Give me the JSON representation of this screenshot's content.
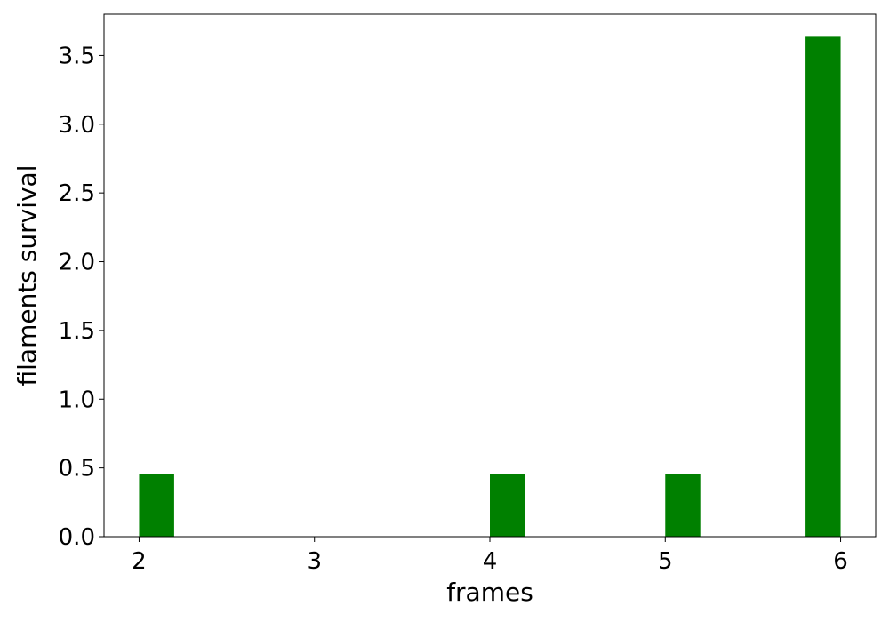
{
  "chart_data": {
    "type": "bar",
    "title": "",
    "xlabel": "frames",
    "ylabel": "filaments survival",
    "xlim": [
      1.8,
      6.2
    ],
    "ylim": [
      0.0,
      3.8
    ],
    "xticks": [
      2,
      3,
      4,
      5,
      6
    ],
    "xtick_labels": [
      "2",
      "3",
      "4",
      "5",
      "6"
    ],
    "yticks": [
      0.0,
      0.5,
      1.0,
      1.5,
      2.0,
      2.5,
      3.0,
      3.5
    ],
    "ytick_labels": [
      "0.0",
      "0.5",
      "1.0",
      "1.5",
      "2.0",
      "2.5",
      "3.0",
      "3.5"
    ],
    "bin_width": 0.2,
    "bars": [
      {
        "x_start": 2.0,
        "x_end": 2.2,
        "value": 0.455
      },
      {
        "x_start": 4.0,
        "x_end": 4.2,
        "value": 0.455
      },
      {
        "x_start": 5.0,
        "x_end": 5.2,
        "value": 0.455
      },
      {
        "x_start": 5.8,
        "x_end": 6.0,
        "value": 3.636
      }
    ],
    "bar_color": "#008000",
    "grid": false,
    "legend": "none"
  }
}
